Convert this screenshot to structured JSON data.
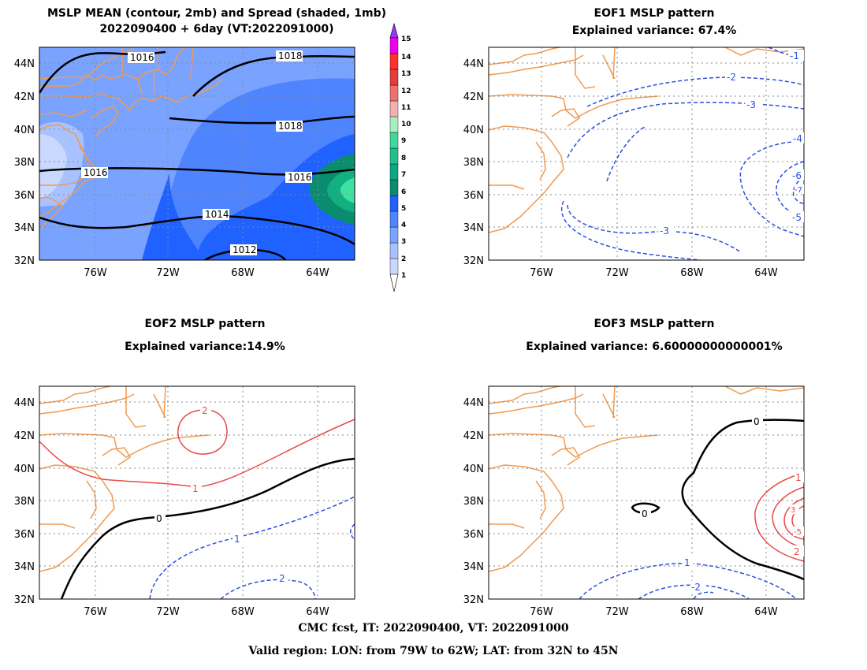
{
  "panels": {
    "p1": {
      "title1": "MSLP MEAN (contour, 2mb) and Spread (shaded, 1mb)",
      "title2": "2022090400 + 6day (VT:2022091000)",
      "contour_labels": [
        "1016",
        "1018",
        "1018",
        "1016",
        "1016",
        "1014",
        "1012"
      ]
    },
    "p2": {
      "title1": "EOF1 MSLP pattern",
      "title2": "Explained variance: 67.4%",
      "contour_labels": [
        "-1",
        "-2",
        "-3",
        "-4",
        "-6",
        "-7",
        "-5",
        "-3"
      ]
    },
    "p3": {
      "title1": "EOF2 MSLP pattern",
      "title2": "Explained variance:14.9%",
      "contour_labels": [
        "2",
        "1",
        "0",
        "1",
        "2"
      ]
    },
    "p4": {
      "title1": "EOF3 MSLP pattern",
      "title2": "Explained variance: 6.60000000000001%",
      "contour_labels": [
        "0",
        "0",
        "1",
        "1",
        "-2",
        "3",
        "-5",
        "2"
      ]
    }
  },
  "axes": {
    "lat_labels": [
      "44N",
      "42N",
      "40N",
      "38N",
      "36N",
      "34N",
      "32N"
    ],
    "lon_labels": [
      "76W",
      "72W",
      "68W",
      "64W"
    ]
  },
  "colorbar": {
    "labels": [
      "1",
      "2",
      "3",
      "4",
      "5",
      "6",
      "7",
      "8",
      "9",
      "10",
      "11",
      "12",
      "13",
      "14",
      "15"
    ],
    "colors": [
      "#c9d8ff",
      "#a8c2ff",
      "#7aa3ff",
      "#4f84ff",
      "#1f62ff",
      "#0a8c6f",
      "#0aa883",
      "#20c08a",
      "#3fd79a",
      "#a8efc0",
      "#f2b0b0",
      "#f07070",
      "#e83b3b",
      "#ff3030",
      "#ee00ee",
      "#9933ff"
    ]
  },
  "map_colors": {
    "coast": "#f09a50",
    "grid": "#888888",
    "positive": "#e84a4a",
    "negative": "#2a4fe0",
    "zero": "#000000"
  },
  "footer": {
    "line1": "CMC fcst, IT: 2022090400, VT: 2022091000",
    "line2": "Valid region: LON: from 79W to 62W; LAT: from 32N to 45N"
  }
}
